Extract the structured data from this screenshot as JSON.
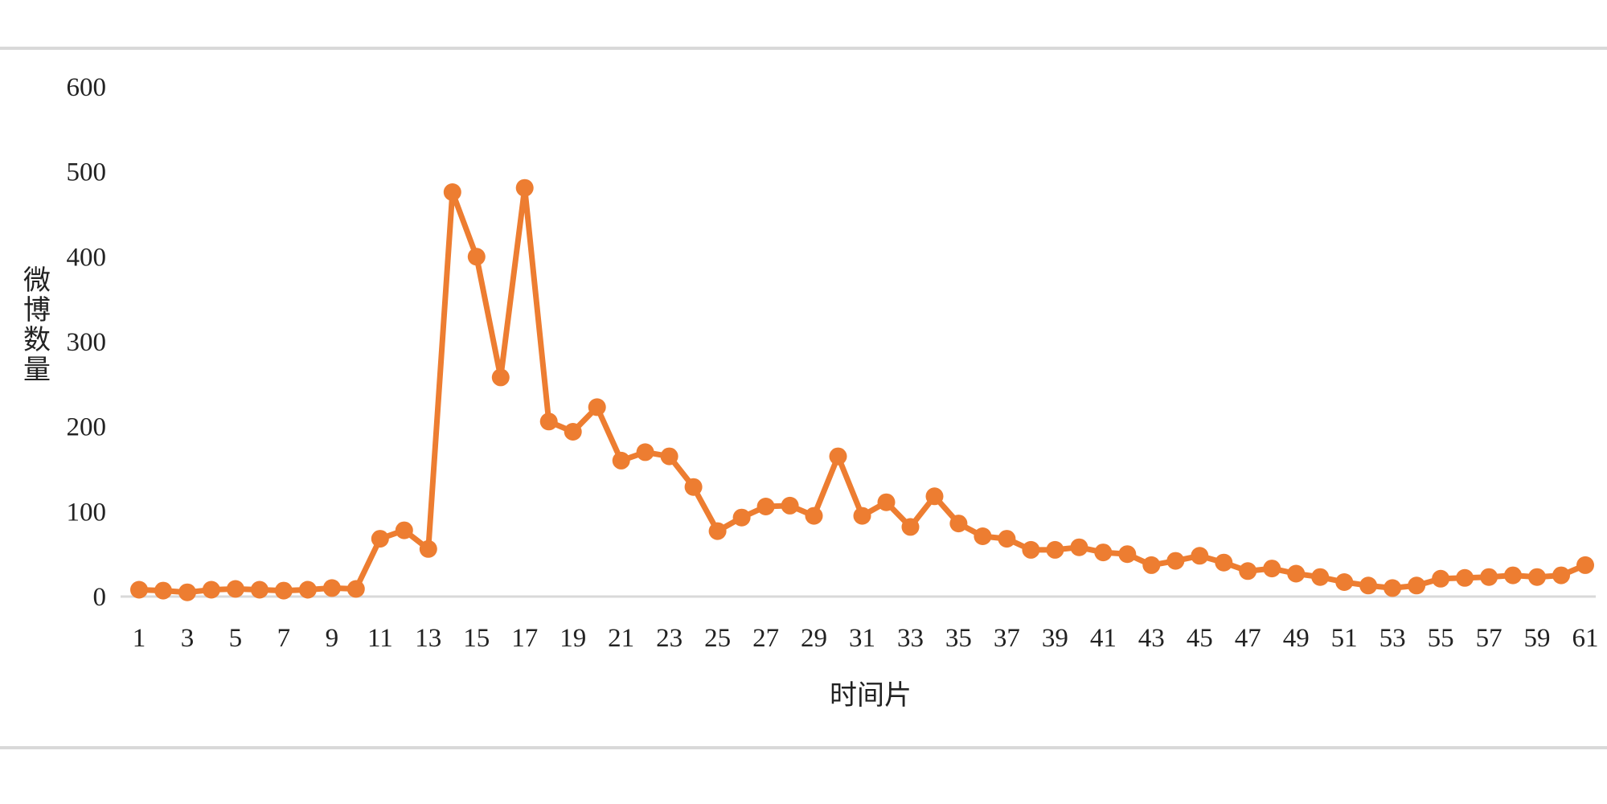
{
  "chart_data": {
    "type": "line",
    "title": "",
    "xlabel": "时间片",
    "ylabel": "微博数量",
    "ylim": [
      0,
      600
    ],
    "yticks": [
      0,
      100,
      200,
      300,
      400,
      500,
      600
    ],
    "grid": false,
    "legend": "none",
    "x": [
      1,
      2,
      3,
      4,
      5,
      6,
      7,
      8,
      9,
      10,
      11,
      12,
      13,
      14,
      15,
      16,
      17,
      18,
      19,
      20,
      21,
      22,
      23,
      24,
      25,
      26,
      27,
      28,
      29,
      30,
      31,
      32,
      33,
      34,
      35,
      36,
      37,
      38,
      39,
      40,
      41,
      42,
      43,
      44,
      45,
      46,
      47,
      48,
      49,
      50,
      51,
      52,
      53,
      54,
      55,
      56,
      57,
      58,
      59,
      60,
      61
    ],
    "xtick_labels": [
      "1",
      "3",
      "5",
      "7",
      "9",
      "11",
      "13",
      "15",
      "17",
      "19",
      "21",
      "23",
      "25",
      "27",
      "29",
      "31",
      "33",
      "35",
      "37",
      "39",
      "41",
      "43",
      "45",
      "47",
      "49",
      "51",
      "53",
      "55",
      "57",
      "59",
      "61"
    ],
    "series": [
      {
        "color": "#ed7d31",
        "values": [
          8,
          7,
          5,
          8,
          9,
          8,
          7,
          8,
          10,
          9,
          68,
          78,
          56,
          476,
          400,
          258,
          481,
          206,
          194,
          223,
          160,
          170,
          165,
          129,
          77,
          93,
          106,
          107,
          95,
          165,
          95,
          111,
          82,
          118,
          86,
          71,
          68,
          55,
          55,
          58,
          52,
          50,
          37,
          42,
          48,
          40,
          30,
          33,
          27,
          23,
          17,
          13,
          10,
          13,
          21,
          22,
          23,
          25,
          23,
          25,
          37
        ]
      }
    ],
    "colors": {
      "baseline": "#d9d9d9",
      "frame_rule": "#d9d9d9",
      "text": "#222222"
    }
  }
}
